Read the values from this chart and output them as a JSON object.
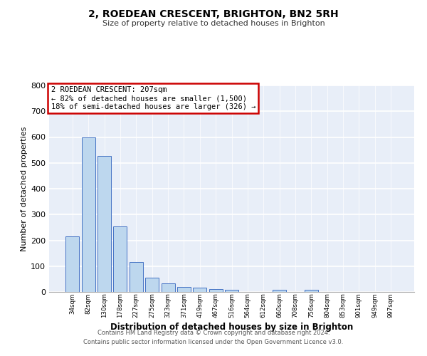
{
  "title": "2, ROEDEAN CRESCENT, BRIGHTON, BN2 5RH",
  "subtitle": "Size of property relative to detached houses in Brighton",
  "xlabel": "Distribution of detached houses by size in Brighton",
  "ylabel": "Number of detached properties",
  "bar_labels": [
    "34sqm",
    "82sqm",
    "130sqm",
    "178sqm",
    "227sqm",
    "275sqm",
    "323sqm",
    "371sqm",
    "419sqm",
    "467sqm",
    "516sqm",
    "564sqm",
    "612sqm",
    "660sqm",
    "708sqm",
    "756sqm",
    "804sqm",
    "853sqm",
    "901sqm",
    "949sqm",
    "997sqm"
  ],
  "bar_values": [
    215,
    600,
    527,
    255,
    117,
    55,
    33,
    20,
    16,
    11,
    8,
    0,
    0,
    8,
    0,
    9,
    0,
    0,
    0,
    0,
    0
  ],
  "ylim": [
    0,
    800
  ],
  "yticks": [
    0,
    100,
    200,
    300,
    400,
    500,
    600,
    700,
    800
  ],
  "bar_color": "#bdd7ee",
  "bar_edge_color": "#4472c4",
  "background_color": "#e8eef8",
  "annotation_box_text": [
    "2 ROEDEAN CRESCENT: 207sqm",
    "← 82% of detached houses are smaller (1,500)",
    "18% of semi-detached houses are larger (326) →"
  ],
  "annotation_box_color": "#cc0000",
  "footer1": "Contains HM Land Registry data © Crown copyright and database right 2024.",
  "footer2": "Contains public sector information licensed under the Open Government Licence v3.0."
}
